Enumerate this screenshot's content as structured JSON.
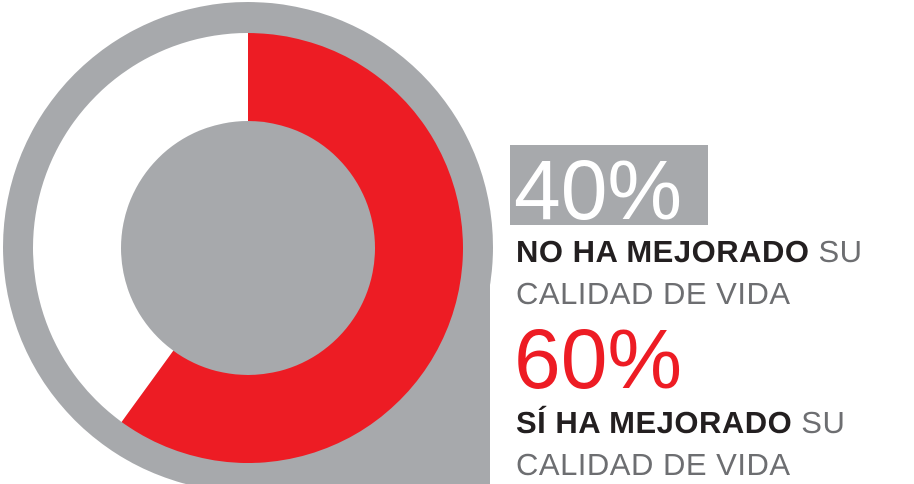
{
  "chart_data": {
    "type": "pie",
    "values": [
      40,
      60
    ],
    "value_labels": [
      "40%",
      "60%"
    ],
    "colors": [
      "#ffffff",
      "#ed1c24"
    ],
    "labels": [
      {
        "strong": "NO HA MEJORADO",
        "text": "SU",
        "line2": "CALIDAD DE VIDA"
      },
      {
        "strong": "SÍ HA MEJORADO",
        "text": "SU",
        "line2": "CALIDAD DE VIDA"
      }
    ]
  }
}
